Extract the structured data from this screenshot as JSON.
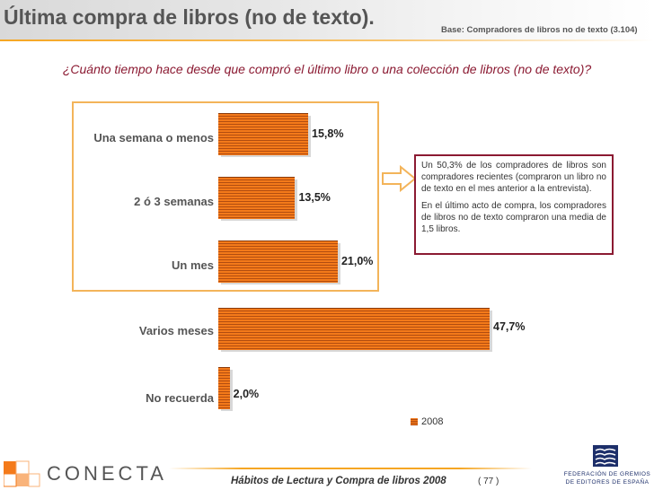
{
  "header": {
    "title": "Última compra de libros (no de texto).",
    "base_note": "Base: Compradores de libros no de texto (3.104)"
  },
  "question": "¿Cuánto tiempo hace desde que compró el último libro o una colección de libros (no de texto)?",
  "callout": {
    "paragraph_1": "Un 50,3% de los compradores de libros son compradores recientes (compraron un libro no de texto en el mes anterior a la entrevista).",
    "paragraph_2": "En el último acto de compra, los compradores de libros no de texto compraron una media de 1,5 libros."
  },
  "chart_data": {
    "type": "bar",
    "orientation": "horizontal",
    "categories": [
      "Una semana o menos",
      "2 ó 3 semanas",
      "Un mes",
      "Varios meses",
      "No recuerda"
    ],
    "series": [
      {
        "name": "2008",
        "values": [
          15.8,
          13.5,
          21.0,
          47.7,
          2.0
        ]
      }
    ],
    "value_labels": [
      "15,8%",
      "13,5%",
      "21,0%",
      "47,7%",
      "2,0%"
    ],
    "xlim": [
      0,
      50
    ],
    "grid": false,
    "legend_position": "bottom-right",
    "colors": {
      "bar": "#f47a1a",
      "bar_stripe": "#b24d10"
    }
  },
  "footer": {
    "title": "Hábitos de Lectura y Compra de libros 2008",
    "page": "( 77 )"
  },
  "logos": {
    "left_brand": "CONECTA",
    "right_line_1": "FEDERACIÓN DE GREMIOS",
    "right_line_2": "DE EDITORES DE ESPAÑA"
  },
  "colors": {
    "accent": "#f5a623",
    "question_text": "#8b1a32",
    "fed_blue": "#1d2f6a"
  }
}
